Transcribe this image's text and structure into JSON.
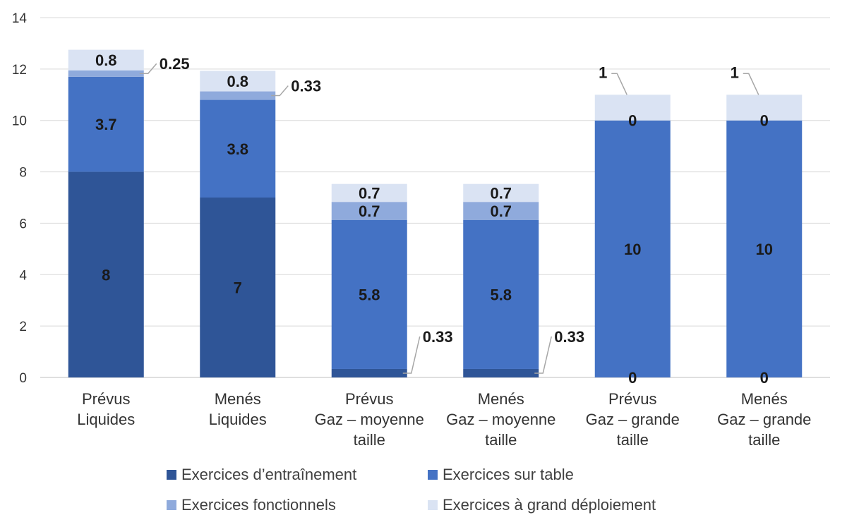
{
  "chart_data": {
    "type": "bar",
    "stacked": true,
    "ylim": [
      0,
      14
    ],
    "yticks": [
      0,
      2,
      4,
      6,
      8,
      10,
      12,
      14
    ],
    "grid": true,
    "legend_position": "bottom",
    "categories": [
      [
        "Prévus",
        "Liquides"
      ],
      [
        "Menés",
        "Liquides"
      ],
      [
        "Prévus",
        "Gaz – moyenne",
        "taille"
      ],
      [
        "Menés",
        "Gaz – moyenne",
        "taille"
      ],
      [
        "Prévus",
        "Gaz – grande",
        "taille"
      ],
      [
        "Menés",
        "Gaz – grande",
        "taille"
      ]
    ],
    "series": [
      {
        "name": "Exercices d’entraînement",
        "color": "#2f5597",
        "values": [
          8,
          7,
          0.33,
          0.33,
          0,
          0
        ],
        "labels": [
          "8",
          "7",
          "0.33",
          "0.33",
          "0",
          "0"
        ]
      },
      {
        "name": "Exercices sur table",
        "color": "#4472c4",
        "values": [
          3.7,
          3.8,
          5.8,
          5.8,
          10,
          10
        ],
        "labels": [
          "3.7",
          "3.8",
          "5.8",
          "5.8",
          "10",
          "10"
        ]
      },
      {
        "name": "Exercices fonctionnels",
        "color": "#8faadc",
        "values": [
          0.25,
          0.33,
          0.7,
          0.7,
          0,
          0
        ],
        "labels": [
          "0.25",
          "0.33",
          "0.7",
          "0.7",
          "0",
          "0"
        ]
      },
      {
        "name": "Exercices à grand déploiement",
        "color": "#dae3f3",
        "values": [
          0.8,
          0.8,
          0.7,
          0.7,
          1,
          1
        ],
        "labels": [
          "0.8",
          "0.8",
          "0.7",
          "0.7",
          "1",
          "1"
        ]
      }
    ]
  }
}
